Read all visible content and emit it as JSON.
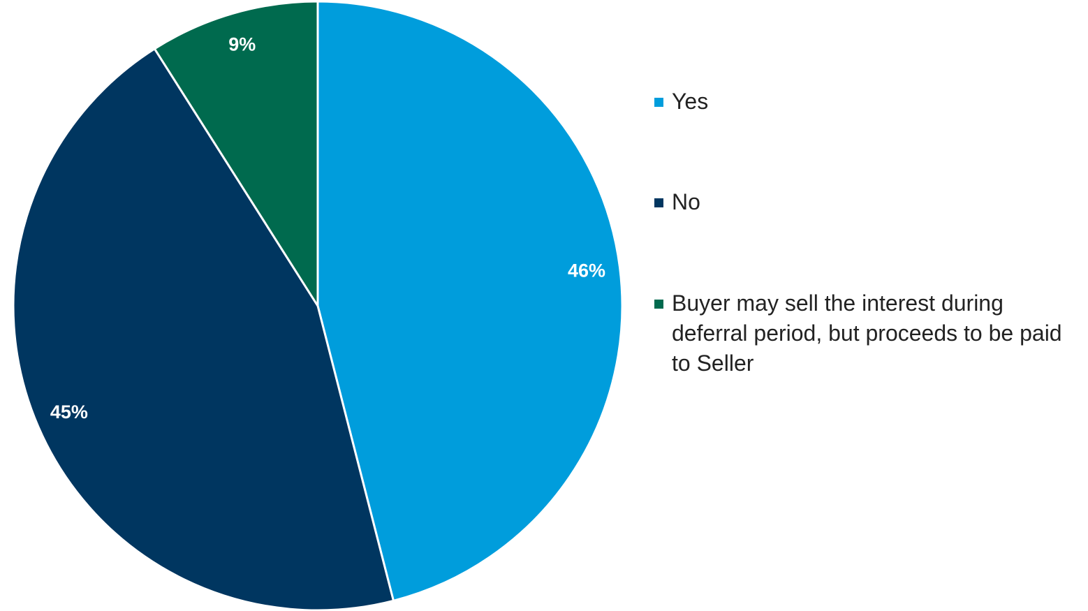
{
  "chart_data": {
    "type": "pie",
    "categories": [
      "Yes",
      "No",
      "Buyer may sell the interest during deferral period, but proceeds to be paid to Seller"
    ],
    "values": [
      46,
      45,
      9
    ],
    "value_labels": [
      "46%",
      "45%",
      "9%"
    ],
    "colors": [
      "#009ddc",
      "#003660",
      "#006a4e"
    ],
    "legend": "right"
  }
}
